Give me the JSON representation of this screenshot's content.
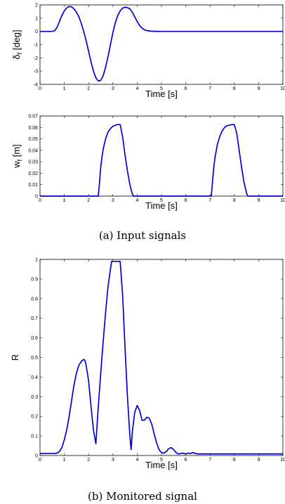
{
  "chart_data": [
    {
      "type": "line",
      "xlabel": "Time [s]",
      "ylabel": "δ",
      "ylabel_sub": "f",
      "ylabel_unit": " [deg]",
      "xlim": [
        0,
        10
      ],
      "ylim": [
        -4,
        2
      ],
      "xticks": [
        0,
        1,
        2,
        3,
        4,
        5,
        6,
        7,
        8,
        9,
        10
      ],
      "yticks": [
        -4,
        -3,
        -2,
        -1,
        0,
        1,
        2
      ],
      "grid": false,
      "color": "#0000dd",
      "series": [
        {
          "x": [
            0,
            0.5,
            0.6,
            0.7,
            0.8,
            0.9,
            1.0,
            1.1,
            1.2,
            1.3,
            1.4,
            1.5,
            1.6,
            1.7,
            1.8,
            1.9,
            2.0,
            2.1,
            2.2,
            2.3,
            2.4,
            2.5,
            2.6,
            2.7,
            2.8,
            2.9,
            3.0,
            3.1,
            3.2,
            3.3,
            3.4,
            3.5,
            3.6,
            3.7,
            3.8,
            3.9,
            4.0,
            4.1,
            4.2,
            4.3,
            4.4,
            4.5,
            4.6,
            4.7,
            4.8,
            5.0,
            5.5,
            10
          ],
          "y": [
            0,
            0,
            0.05,
            0.3,
            0.75,
            1.2,
            1.55,
            1.78,
            1.88,
            1.85,
            1.7,
            1.45,
            1.1,
            0.6,
            0.0,
            -0.7,
            -1.5,
            -2.3,
            -3.0,
            -3.5,
            -3.75,
            -3.7,
            -3.35,
            -2.7,
            -1.9,
            -1.0,
            -0.1,
            0.65,
            1.2,
            1.55,
            1.75,
            1.83,
            1.8,
            1.7,
            1.45,
            1.1,
            0.75,
            0.45,
            0.25,
            0.12,
            0.06,
            0.03,
            0.015,
            0.008,
            0.004,
            0,
            0,
            0
          ]
        }
      ]
    },
    {
      "type": "line",
      "xlabel": "Time [s]",
      "ylabel": "w",
      "ylabel_sub": "f",
      "ylabel_unit": " [m]",
      "xlim": [
        0,
        10
      ],
      "ylim": [
        0,
        0.07
      ],
      "xticks": [
        0,
        1,
        2,
        3,
        4,
        5,
        6,
        7,
        8,
        9,
        10
      ],
      "yticks": [
        "0",
        "0.01",
        "0.02",
        "0.03",
        "0.04",
        "0.05",
        "0.06",
        "0.07"
      ],
      "grid": false,
      "color": "#0000dd",
      "series": [
        {
          "x": [
            0,
            2.4,
            2.45,
            2.5,
            2.55,
            2.6,
            2.7,
            2.8,
            2.9,
            3.0,
            3.1,
            3.2,
            3.3,
            3.4,
            3.5,
            3.6,
            3.7,
            3.8,
            3.85,
            7.05,
            7.1,
            7.15,
            7.2,
            7.3,
            7.4,
            7.5,
            7.6,
            7.7,
            7.8,
            7.9,
            8.0,
            8.1,
            8.2,
            8.3,
            8.4,
            8.5,
            8.55,
            10
          ],
          "y": [
            0,
            0,
            0.012,
            0.025,
            0.034,
            0.041,
            0.05,
            0.056,
            0.059,
            0.061,
            0.062,
            0.0625,
            0.0625,
            0.052,
            0.036,
            0.022,
            0.01,
            0.002,
            0,
            0,
            0.012,
            0.024,
            0.033,
            0.045,
            0.052,
            0.057,
            0.06,
            0.0615,
            0.062,
            0.0625,
            0.0625,
            0.055,
            0.04,
            0.025,
            0.012,
            0.003,
            0,
            0
          ]
        }
      ]
    },
    {
      "type": "line",
      "xlabel": "Time [s]",
      "ylabel": "R",
      "xlim": [
        0,
        10
      ],
      "ylim": [
        0,
        1
      ],
      "xticks": [
        0,
        1,
        2,
        3,
        4,
        5,
        6,
        7,
        8,
        9,
        10
      ],
      "yticks": [
        "0",
        "0.1",
        "0.2",
        "0.3",
        "0.4",
        "0.5",
        "0.6",
        "0.7",
        "0.8",
        "0.9",
        "1"
      ],
      "grid": false,
      "color": "#0000dd",
      "series": [
        {
          "x": [
            0,
            0.6,
            0.7,
            0.8,
            0.9,
            1.0,
            1.1,
            1.2,
            1.3,
            1.4,
            1.5,
            1.6,
            1.7,
            1.8,
            1.85,
            1.9,
            2.0,
            2.1,
            2.2,
            2.3,
            2.4,
            2.5,
            2.6,
            2.7,
            2.8,
            2.9,
            2.95,
            3.0,
            3.05,
            3.2,
            3.3,
            3.4,
            3.5,
            3.6,
            3.7,
            3.75,
            3.8,
            3.9,
            4.0,
            4.1,
            4.2,
            4.3,
            4.4,
            4.5,
            4.6,
            4.7,
            4.8,
            4.9,
            5.0,
            5.1,
            5.2,
            5.3,
            5.4,
            5.5,
            5.6,
            5.7,
            5.8,
            5.9,
            6.0,
            6.1,
            6.2,
            6.3,
            6.4,
            6.5,
            7.0,
            10
          ],
          "y": [
            0.01,
            0.01,
            0.012,
            0.02,
            0.04,
            0.08,
            0.13,
            0.2,
            0.28,
            0.36,
            0.42,
            0.46,
            0.48,
            0.49,
            0.485,
            0.46,
            0.38,
            0.25,
            0.13,
            0.06,
            0.25,
            0.42,
            0.58,
            0.73,
            0.86,
            0.95,
            0.99,
            0.99,
            0.99,
            0.99,
            0.99,
            0.82,
            0.55,
            0.3,
            0.1,
            0.03,
            0.12,
            0.22,
            0.255,
            0.23,
            0.18,
            0.18,
            0.195,
            0.19,
            0.16,
            0.11,
            0.065,
            0.03,
            0.015,
            0.012,
            0.02,
            0.035,
            0.04,
            0.03,
            0.015,
            0.008,
            0.01,
            0.012,
            0.008,
            0.012,
            0.01,
            0.015,
            0.01,
            0.008,
            0.008,
            0.008
          ]
        }
      ]
    }
  ],
  "captions": {
    "a": "(a)  Input signals",
    "b": "(b)  Monitored signal"
  }
}
